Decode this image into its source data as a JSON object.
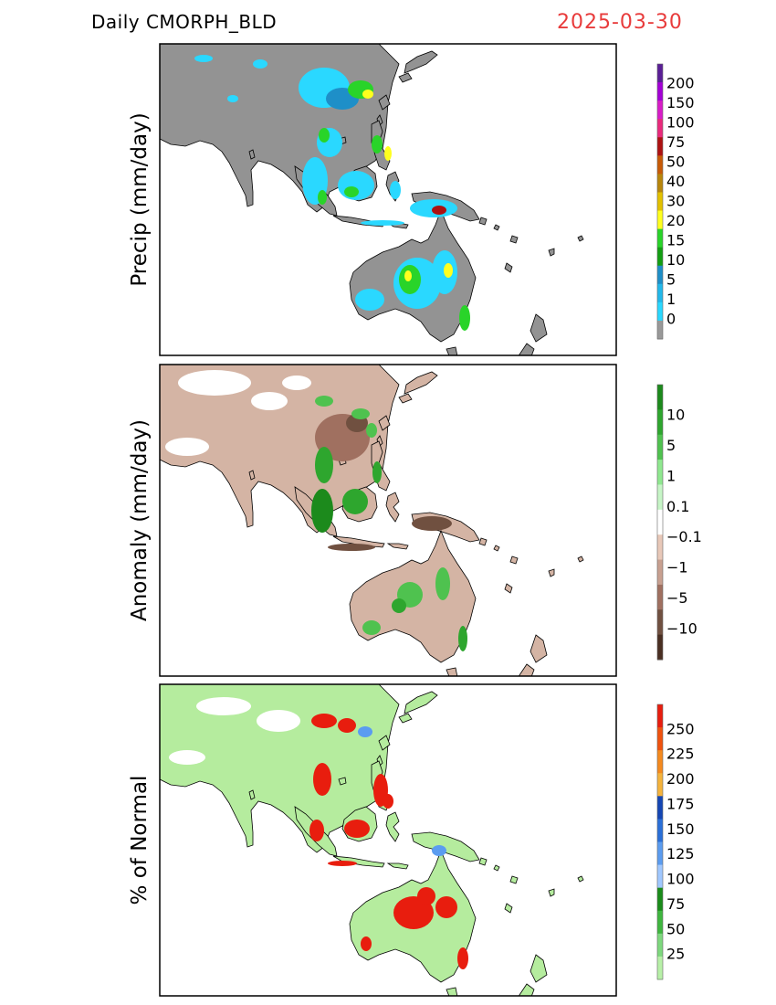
{
  "header": {
    "product": "Daily CMORPH_BLD",
    "date": "2025-03-30"
  },
  "panels": [
    {
      "ylabel": "Precip (mm/day)",
      "colorbar": {
        "labels": [
          "200",
          "150",
          "100",
          "75",
          "50",
          "40",
          "30",
          "20",
          "15",
          "10",
          "5",
          "1",
          "0"
        ],
        "colors": [
          "#5a1e96",
          "#a300d6",
          "#d81cc8",
          "#ea2a7c",
          "#ad1111",
          "#c85a06",
          "#b8860b",
          "#e3c100",
          "#ffff1e",
          "#29d429",
          "#129e12",
          "#1e8fc8",
          "#22b8ea",
          "#2ad8ff",
          "#999999"
        ]
      }
    },
    {
      "ylabel": "Anomaly (mm/day)",
      "colorbar": {
        "labels": [
          "10",
          "5",
          "1",
          "0.1",
          "−0.1",
          "−1",
          "−5",
          "−10"
        ],
        "colors": [
          "#1c8a1c",
          "#2ea62e",
          "#4fc24f",
          "#8fe88f",
          "#c6f5c6",
          "#ffffff",
          "#e8c8b8",
          "#c8a090",
          "#a07060",
          "#705040",
          "#4a2f22"
        ]
      }
    },
    {
      "ylabel": "% of Normal",
      "colorbar": {
        "labels": [
          "250",
          "225",
          "200",
          "175",
          "150",
          "125",
          "100",
          "75",
          "50",
          "25"
        ],
        "colors": [
          "#e81d0e",
          "#f0520e",
          "#f58a1e",
          "#f5b33c",
          "#1446b4",
          "#2a6fd8",
          "#5b9cf0",
          "#a0c8ff",
          "#1a8c1a",
          "#3fb63f",
          "#7ed87e",
          "#b7f0a7"
        ]
      }
    }
  ]
}
